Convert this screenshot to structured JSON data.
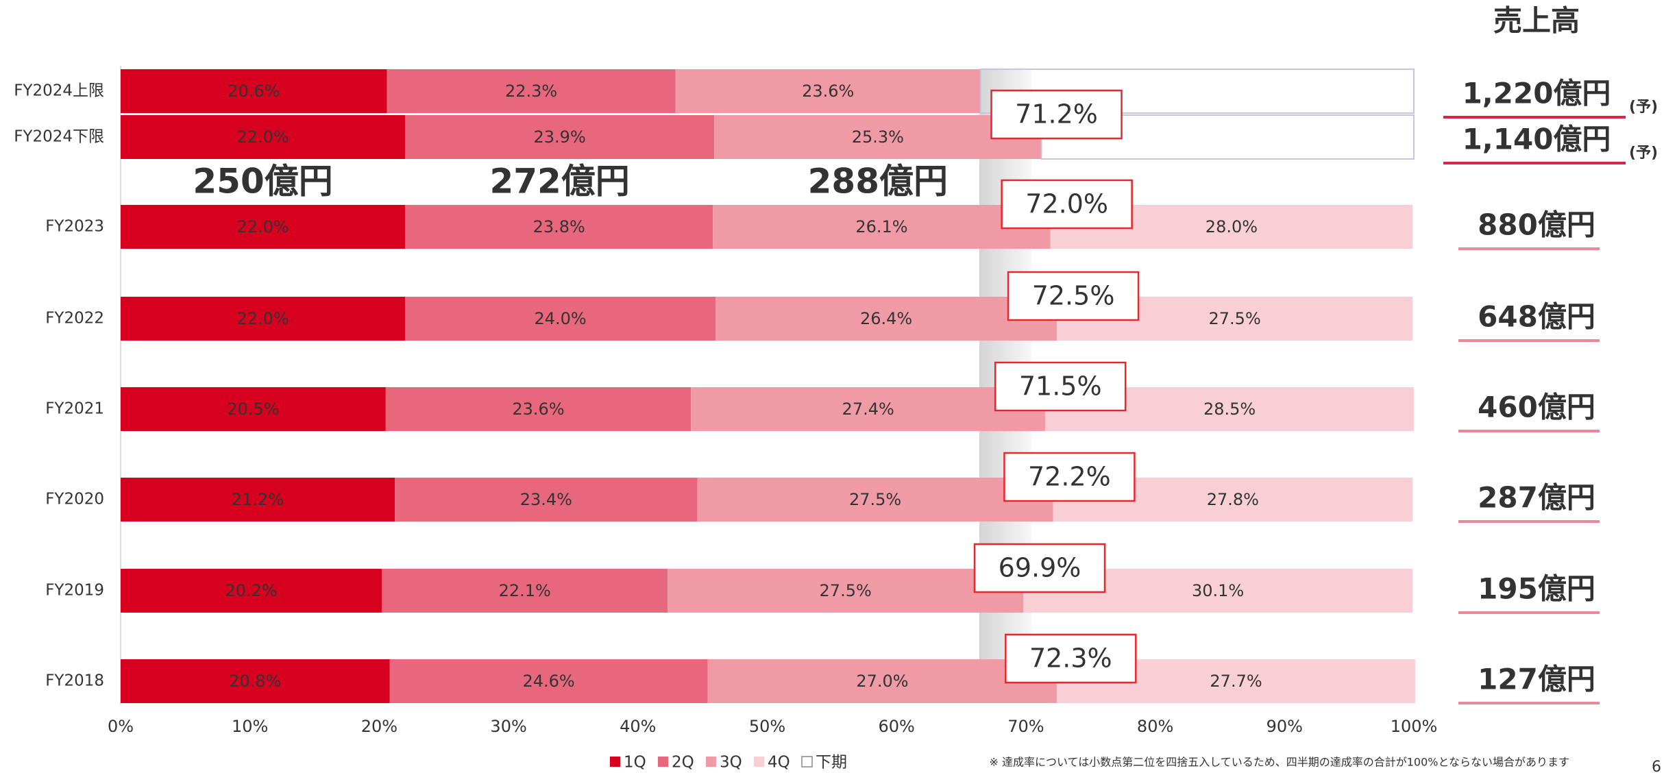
{
  "chart_data": {
    "type": "stacked_barh",
    "categories": [
      "FY2024上限",
      "FY2024下限",
      "FY2023",
      "FY2022",
      "FY2021",
      "FY2020",
      "FY2019",
      "FY2018"
    ],
    "series": [
      {
        "name": "1Q",
        "color": "#d7001e",
        "values": [
          20.6,
          22.0,
          22.0,
          22.0,
          20.5,
          21.2,
          20.2,
          20.8
        ],
        "value_labels": [
          "20.6%",
          "22.0%",
          "22.0%",
          "22.0%",
          "20.5%",
          "21.2%",
          "20.2%",
          "20.8%"
        ]
      },
      {
        "name": "2Q",
        "color": "#e8677c",
        "values": [
          22.3,
          23.9,
          23.8,
          24.0,
          23.6,
          23.4,
          22.1,
          24.6
        ],
        "value_labels": [
          "22.3%",
          "23.9%",
          "23.8%",
          "24.0%",
          "23.6%",
          "23.4%",
          "22.1%",
          "24.6%"
        ]
      },
      {
        "name": "3Q",
        "color": "#f09aa6",
        "values": [
          23.6,
          25.3,
          26.1,
          26.4,
          27.4,
          27.5,
          27.5,
          27.0
        ],
        "value_labels": [
          "23.6%",
          "25.3%",
          "26.1%",
          "26.4%",
          "27.4%",
          "27.5%",
          "27.5%",
          "27.0%"
        ]
      },
      {
        "name": "4Q",
        "color": "#f9cfd6",
        "values": [
          null,
          null,
          28.0,
          27.5,
          28.5,
          27.8,
          30.1,
          27.7
        ],
        "value_labels": [
          null,
          null,
          "28.0%",
          "27.5%",
          "28.5%",
          "27.8%",
          "30.1%",
          "27.7%"
        ]
      },
      {
        "name": "下期",
        "color": "#c8c4e0",
        "values": [
          33.5,
          28.8,
          null,
          null,
          null,
          null,
          null,
          null
        ]
      }
    ],
    "xlim": [
      0,
      100
    ],
    "xticks": [
      {
        "value": 0,
        "label": "0%"
      },
      {
        "value": 10,
        "label": "10%"
      },
      {
        "value": 20,
        "label": "20%"
      },
      {
        "value": 30,
        "label": "30%"
      },
      {
        "value": 40,
        "label": "40%"
      },
      {
        "value": 50,
        "label": "50%"
      },
      {
        "value": 60,
        "label": "60%"
      },
      {
        "value": 70,
        "label": "70%"
      },
      {
        "value": 80,
        "label": "80%"
      },
      {
        "value": 90,
        "label": "90%"
      },
      {
        "value": 100,
        "label": "100%"
      }
    ],
    "cumulative": {
      "values": [
        null,
        71.2,
        72.0,
        72.5,
        71.5,
        72.2,
        69.9,
        72.3
      ],
      "value_labels": [
        null,
        "71.2%",
        "72.0%",
        "72.5%",
        "71.5%",
        "72.2%",
        "69.9%",
        "72.3%"
      ]
    },
    "quarter_amounts": [
      "250億円",
      "272億円",
      "288億円"
    ],
    "revenue": {
      "title": "売上高",
      "labels": [
        "1,220億円",
        "1,140億円",
        "880億円",
        "648億円",
        "460億円",
        "287億円",
        "195億円",
        "127億円"
      ],
      "notes": [
        "(予)",
        "(予)",
        null,
        null,
        null,
        null,
        null,
        null
      ]
    },
    "footnote": "※ 達成率については小数点第二位を四捨五入しているため、四半期の達成率の合計が100%とならない場合があります",
    "page_number": "6"
  }
}
